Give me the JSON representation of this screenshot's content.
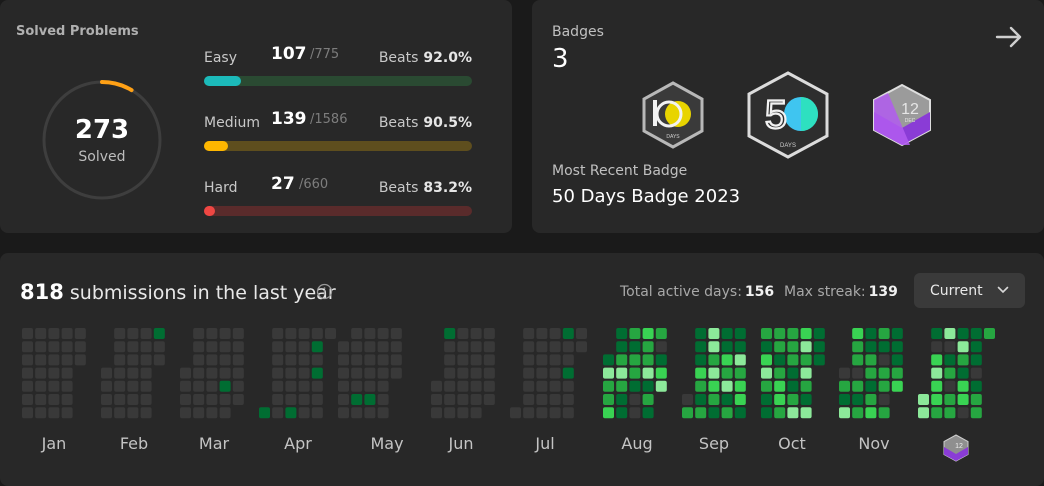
{
  "solved": {
    "title": "Solved Problems",
    "count": "273",
    "label": "Solved",
    "difficulties": [
      {
        "name": "Easy",
        "solved": "107",
        "total": "/775",
        "beats_label": "Beats",
        "beats": "92.0%",
        "fill": 0.138,
        "color": "#1cbaba",
        "track": "#2a4a32"
      },
      {
        "name": "Medium",
        "solved": "139",
        "total": "/1586",
        "beats_label": "Beats",
        "beats": "90.5%",
        "fill": 0.088,
        "color": "#ffb700",
        "track": "#5e4e1e"
      },
      {
        "name": "Hard",
        "solved": "27",
        "total": "/660",
        "beats_label": "Beats",
        "beats": "83.2%",
        "fill": 0.041,
        "color": "#ef4743",
        "track": "#5a2b2b"
      }
    ]
  },
  "badges": {
    "label": "Badges",
    "count": "3",
    "items": [
      {
        "name": "100-days-badge-icon",
        "text": "100",
        "sub": "DAYS"
      },
      {
        "name": "50-days-badge-icon",
        "text": "50",
        "sub": "DAYS"
      },
      {
        "name": "12-dec-badge-icon",
        "text": "12",
        "sub": "DEC"
      }
    ],
    "recent_label": "Most Recent Badge",
    "recent_name": "50 Days Badge 2023"
  },
  "activity": {
    "total": "818",
    "text": "submissions in the last year",
    "active_label": "Total active days:",
    "active_days": "156",
    "streak_label": "Max streak:",
    "max_streak": "139",
    "selector": "Current",
    "months": [
      "Jan",
      "Feb",
      "Mar",
      "Apr",
      "May",
      "Jun",
      "Jul",
      "Aug",
      "Sep",
      "Oct",
      "Nov"
    ]
  },
  "colors": {
    "cell_empty": "#393939",
    "level1": "#0e4429",
    "level2": "#006d32",
    "level3": "#26a641",
    "level4": "#39d353",
    "level5": "#8ce99a"
  }
}
